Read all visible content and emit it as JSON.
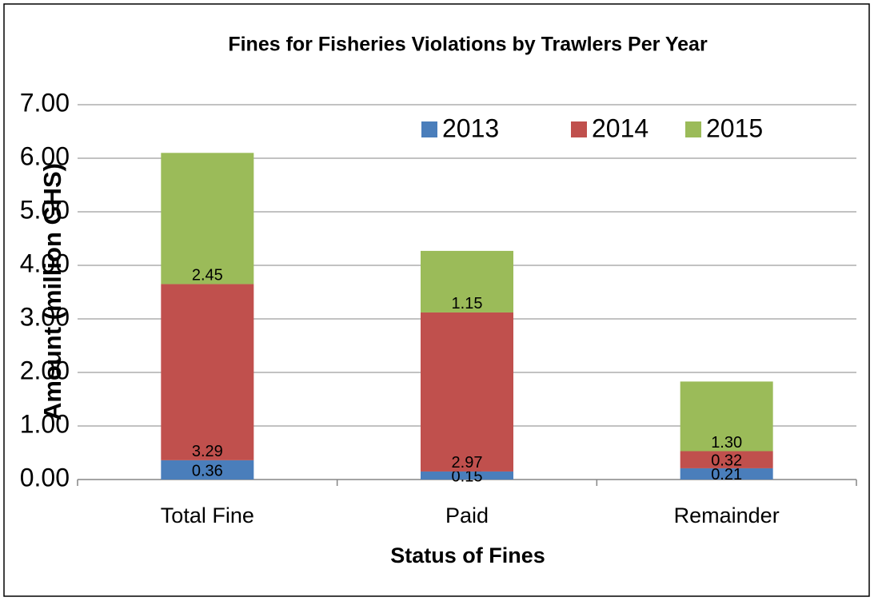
{
  "chart_data": {
    "type": "bar",
    "stacked": true,
    "title": "Fines for Fisheries Violations by Trawlers Per Year",
    "x_label": "Status of Fines",
    "y_label": "Amount (million GHS)",
    "categories": [
      "Total Fine",
      "Paid",
      "Remainder"
    ],
    "series": [
      {
        "name": "2013",
        "color": "#4a7ebb",
        "values": [
          0.36,
          0.15,
          0.21
        ],
        "value_labels": [
          "0.36",
          "0.15",
          "0.21"
        ]
      },
      {
        "name": "2014",
        "color": "#c0504d",
        "values": [
          3.29,
          2.97,
          0.32
        ],
        "value_labels": [
          "3.29",
          "2.97",
          "0.32"
        ]
      },
      {
        "name": "2015",
        "color": "#9bbb59",
        "values": [
          2.45,
          1.15,
          1.3
        ],
        "value_labels": [
          "2.45",
          "1.15",
          "1.30"
        ]
      }
    ],
    "ylim": [
      0,
      7
    ],
    "yticks": [
      {
        "value": 0,
        "label": "0.00"
      },
      {
        "value": 1,
        "label": "1.00"
      },
      {
        "value": 2,
        "label": "2.00"
      },
      {
        "value": 3,
        "label": "3.00"
      },
      {
        "value": 4,
        "label": "4.00"
      },
      {
        "value": 5,
        "label": "5.00"
      },
      {
        "value": 6,
        "label": "6.00"
      },
      {
        "value": 7,
        "label": "7.00"
      }
    ],
    "grid": true,
    "legend": "top"
  }
}
